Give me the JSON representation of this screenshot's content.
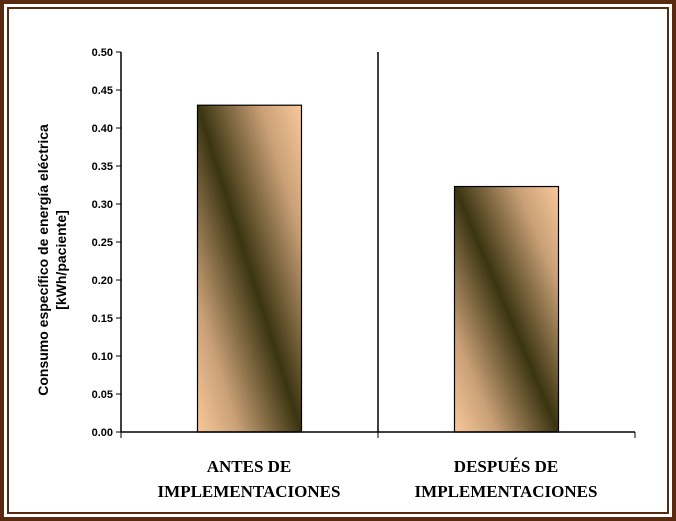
{
  "chart_data": {
    "type": "bar",
    "categories": [
      [
        "ANTES DE",
        "IMPLEMENTACIONES"
      ],
      [
        "DESPUÉS DE",
        "IMPLEMENTACIONES"
      ]
    ],
    "values": [
      0.43,
      0.323
    ],
    "ylabel": [
      "Consumo específico de energía eléctrica",
      "[kWh/paciente]"
    ],
    "ylim": [
      0,
      0.5
    ],
    "yticks": [
      "0.00",
      "0.05",
      "0.10",
      "0.15",
      "0.20",
      "0.25",
      "0.30",
      "0.35",
      "0.40",
      "0.45",
      "0.50"
    ],
    "grid": false,
    "colors": {
      "frame": "#5a2a10",
      "bar_light": "#f9c89a",
      "bar_dark": "#3a3410",
      "axis": "#000000"
    }
  }
}
